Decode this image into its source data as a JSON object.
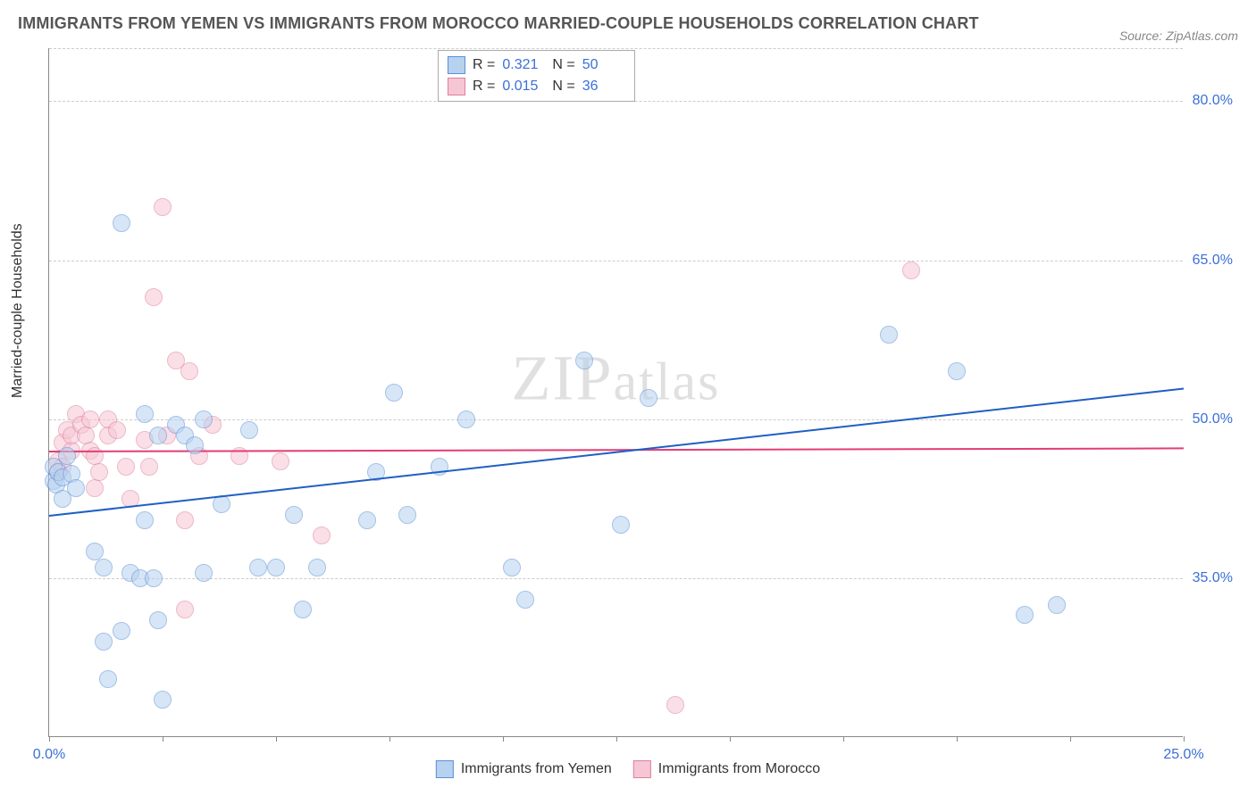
{
  "title": "IMMIGRANTS FROM YEMEN VS IMMIGRANTS FROM MOROCCO MARRIED-COUPLE HOUSEHOLDS CORRELATION CHART",
  "source": "Source: ZipAtlas.com",
  "watermark": "ZIPatlas",
  "y_axis_label": "Married-couple Households",
  "chart": {
    "type": "scatter",
    "background_color": "#ffffff",
    "grid_color": "#cccccc",
    "grid_dash": "4,4",
    "axis_color": "#888888",
    "xlim": [
      0,
      25
    ],
    "ylim": [
      20,
      85
    ],
    "x_ticks": [
      0.0,
      25.0
    ],
    "x_tick_labels": [
      "0.0%",
      "25.0%"
    ],
    "y_grid_values": [
      35.0,
      50.0,
      65.0,
      80.0
    ],
    "y_tick_labels": [
      "35.0%",
      "50.0%",
      "65.0%",
      "80.0%"
    ],
    "x_minor_ticks": [
      0,
      2.5,
      5,
      7.5,
      10,
      12.5,
      15,
      17.5,
      20,
      22.5,
      25
    ],
    "label_color": "#3a6fd8",
    "label_fontsize": 16,
    "title_fontsize": 18,
    "title_color": "#555555",
    "point_radius": 10,
    "point_opacity": 0.55,
    "point_border_width": 1.5
  },
  "series": [
    {
      "name": "Immigrants from Yemen",
      "fill": "#b7d2ef",
      "stroke": "#5a8fd6",
      "points": [
        [
          0.1,
          44.2
        ],
        [
          0.1,
          45.5
        ],
        [
          0.15,
          43.8
        ],
        [
          0.2,
          45.0
        ],
        [
          0.3,
          42.5
        ],
        [
          0.3,
          44.5
        ],
        [
          0.4,
          46.5
        ],
        [
          0.5,
          44.8
        ],
        [
          0.6,
          43.5
        ],
        [
          1.0,
          37.5
        ],
        [
          1.2,
          29.0
        ],
        [
          1.2,
          36.0
        ],
        [
          1.3,
          25.5
        ],
        [
          1.6,
          68.5
        ],
        [
          1.6,
          30.0
        ],
        [
          1.8,
          35.5
        ],
        [
          2.0,
          35.0
        ],
        [
          2.1,
          50.5
        ],
        [
          2.1,
          40.5
        ],
        [
          2.3,
          35.0
        ],
        [
          2.4,
          31.0
        ],
        [
          2.4,
          48.5
        ],
        [
          2.5,
          23.5
        ],
        [
          2.8,
          49.5
        ],
        [
          3.0,
          48.5
        ],
        [
          3.2,
          47.5
        ],
        [
          3.4,
          35.5
        ],
        [
          3.4,
          50.0
        ],
        [
          3.8,
          42.0
        ],
        [
          4.4,
          49.0
        ],
        [
          4.6,
          36.0
        ],
        [
          5.0,
          36.0
        ],
        [
          5.4,
          41.0
        ],
        [
          5.6,
          32.0
        ],
        [
          5.9,
          36.0
        ],
        [
          7.0,
          40.5
        ],
        [
          7.2,
          45.0
        ],
        [
          7.6,
          52.5
        ],
        [
          7.9,
          41.0
        ],
        [
          8.6,
          45.5
        ],
        [
          9.2,
          50.0
        ],
        [
          10.2,
          36.0
        ],
        [
          10.5,
          33.0
        ],
        [
          11.8,
          55.5
        ],
        [
          12.6,
          40.0
        ],
        [
          13.2,
          52.0
        ],
        [
          18.5,
          58.0
        ],
        [
          20.0,
          54.5
        ],
        [
          21.5,
          31.5
        ],
        [
          22.2,
          32.5
        ]
      ],
      "trend": {
        "x1": 0,
        "y1": 41.0,
        "x2": 25,
        "y2": 53.0,
        "color": "#1f5fc4",
        "width": 2
      },
      "R": "0.321",
      "N": "50"
    },
    {
      "name": "Immigrants from Morocco",
      "fill": "#f6c6d4",
      "stroke": "#e07f9e",
      "points": [
        [
          0.2,
          45.0
        ],
        [
          0.2,
          46.0
        ],
        [
          0.3,
          45.5
        ],
        [
          0.3,
          47.8
        ],
        [
          0.4,
          49.0
        ],
        [
          0.5,
          47.0
        ],
        [
          0.5,
          48.5
        ],
        [
          0.6,
          50.5
        ],
        [
          0.7,
          49.5
        ],
        [
          0.8,
          48.5
        ],
        [
          0.9,
          47.0
        ],
        [
          0.9,
          50.0
        ],
        [
          1.0,
          43.5
        ],
        [
          1.0,
          46.5
        ],
        [
          1.1,
          45.0
        ],
        [
          1.3,
          48.5
        ],
        [
          1.3,
          50.0
        ],
        [
          1.5,
          49.0
        ],
        [
          1.7,
          45.5
        ],
        [
          1.8,
          42.5
        ],
        [
          2.1,
          48.0
        ],
        [
          2.2,
          45.5
        ],
        [
          2.3,
          61.5
        ],
        [
          2.5,
          70.0
        ],
        [
          2.6,
          48.5
        ],
        [
          2.8,
          55.5
        ],
        [
          3.0,
          40.5
        ],
        [
          3.0,
          32.0
        ],
        [
          3.1,
          54.5
        ],
        [
          3.3,
          46.5
        ],
        [
          3.6,
          49.5
        ],
        [
          4.2,
          46.5
        ],
        [
          5.1,
          46.0
        ],
        [
          6.0,
          39.0
        ],
        [
          13.8,
          23.0
        ],
        [
          19.0,
          64.0
        ]
      ],
      "trend": {
        "x1": 0,
        "y1": 47.0,
        "x2": 25,
        "y2": 47.3,
        "color": "#e23d74",
        "width": 2
      },
      "R": "0.015",
      "N": "36"
    }
  ],
  "stats_legend": {
    "r_label": "R  =",
    "n_label": "N  ="
  },
  "bottom_legend": {
    "items": [
      "Immigrants from Yemen",
      "Immigrants from Morocco"
    ]
  }
}
